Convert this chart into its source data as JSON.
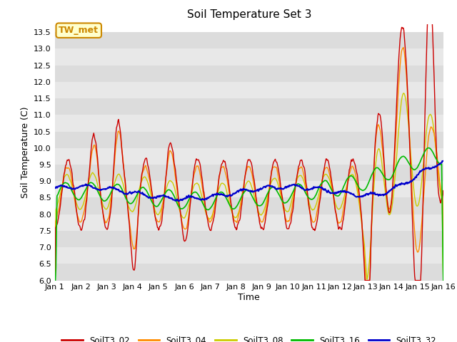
{
  "title": "Soil Temperature Set 3",
  "xlabel": "Time",
  "ylabel": "Soil Temperature (C)",
  "ylim": [
    6.0,
    13.75
  ],
  "yticks": [
    6.0,
    6.5,
    7.0,
    7.5,
    8.0,
    8.5,
    9.0,
    9.5,
    10.0,
    10.5,
    11.0,
    11.5,
    12.0,
    12.5,
    13.0,
    13.5
  ],
  "xtick_labels": [
    "Jan 1",
    "Jan 2",
    "Jan 3",
    "Jan 4",
    "Jan 5",
    "Jan 6",
    "Jan 7",
    "Jan 8",
    "Jan 9",
    "Jan 10",
    "Jan 11",
    "Jan 12",
    "Jan 13",
    "Jan 14",
    "Jan 15",
    "Jan 16"
  ],
  "colors": {
    "SoilT3_02": "#cc0000",
    "SoilT3_04": "#ff8c00",
    "SoilT3_08": "#cccc00",
    "SoilT3_16": "#00bb00",
    "SoilT3_32": "#0000cc"
  },
  "annotation_text": "TW_met",
  "annotation_bg": "#ffffcc",
  "annotation_border": "#cc8800",
  "band_colors": [
    "#dcdcdc",
    "#e8e8e8"
  ],
  "fig_bg": "#ffffff",
  "title_fontsize": 11,
  "label_fontsize": 9,
  "tick_fontsize": 8
}
